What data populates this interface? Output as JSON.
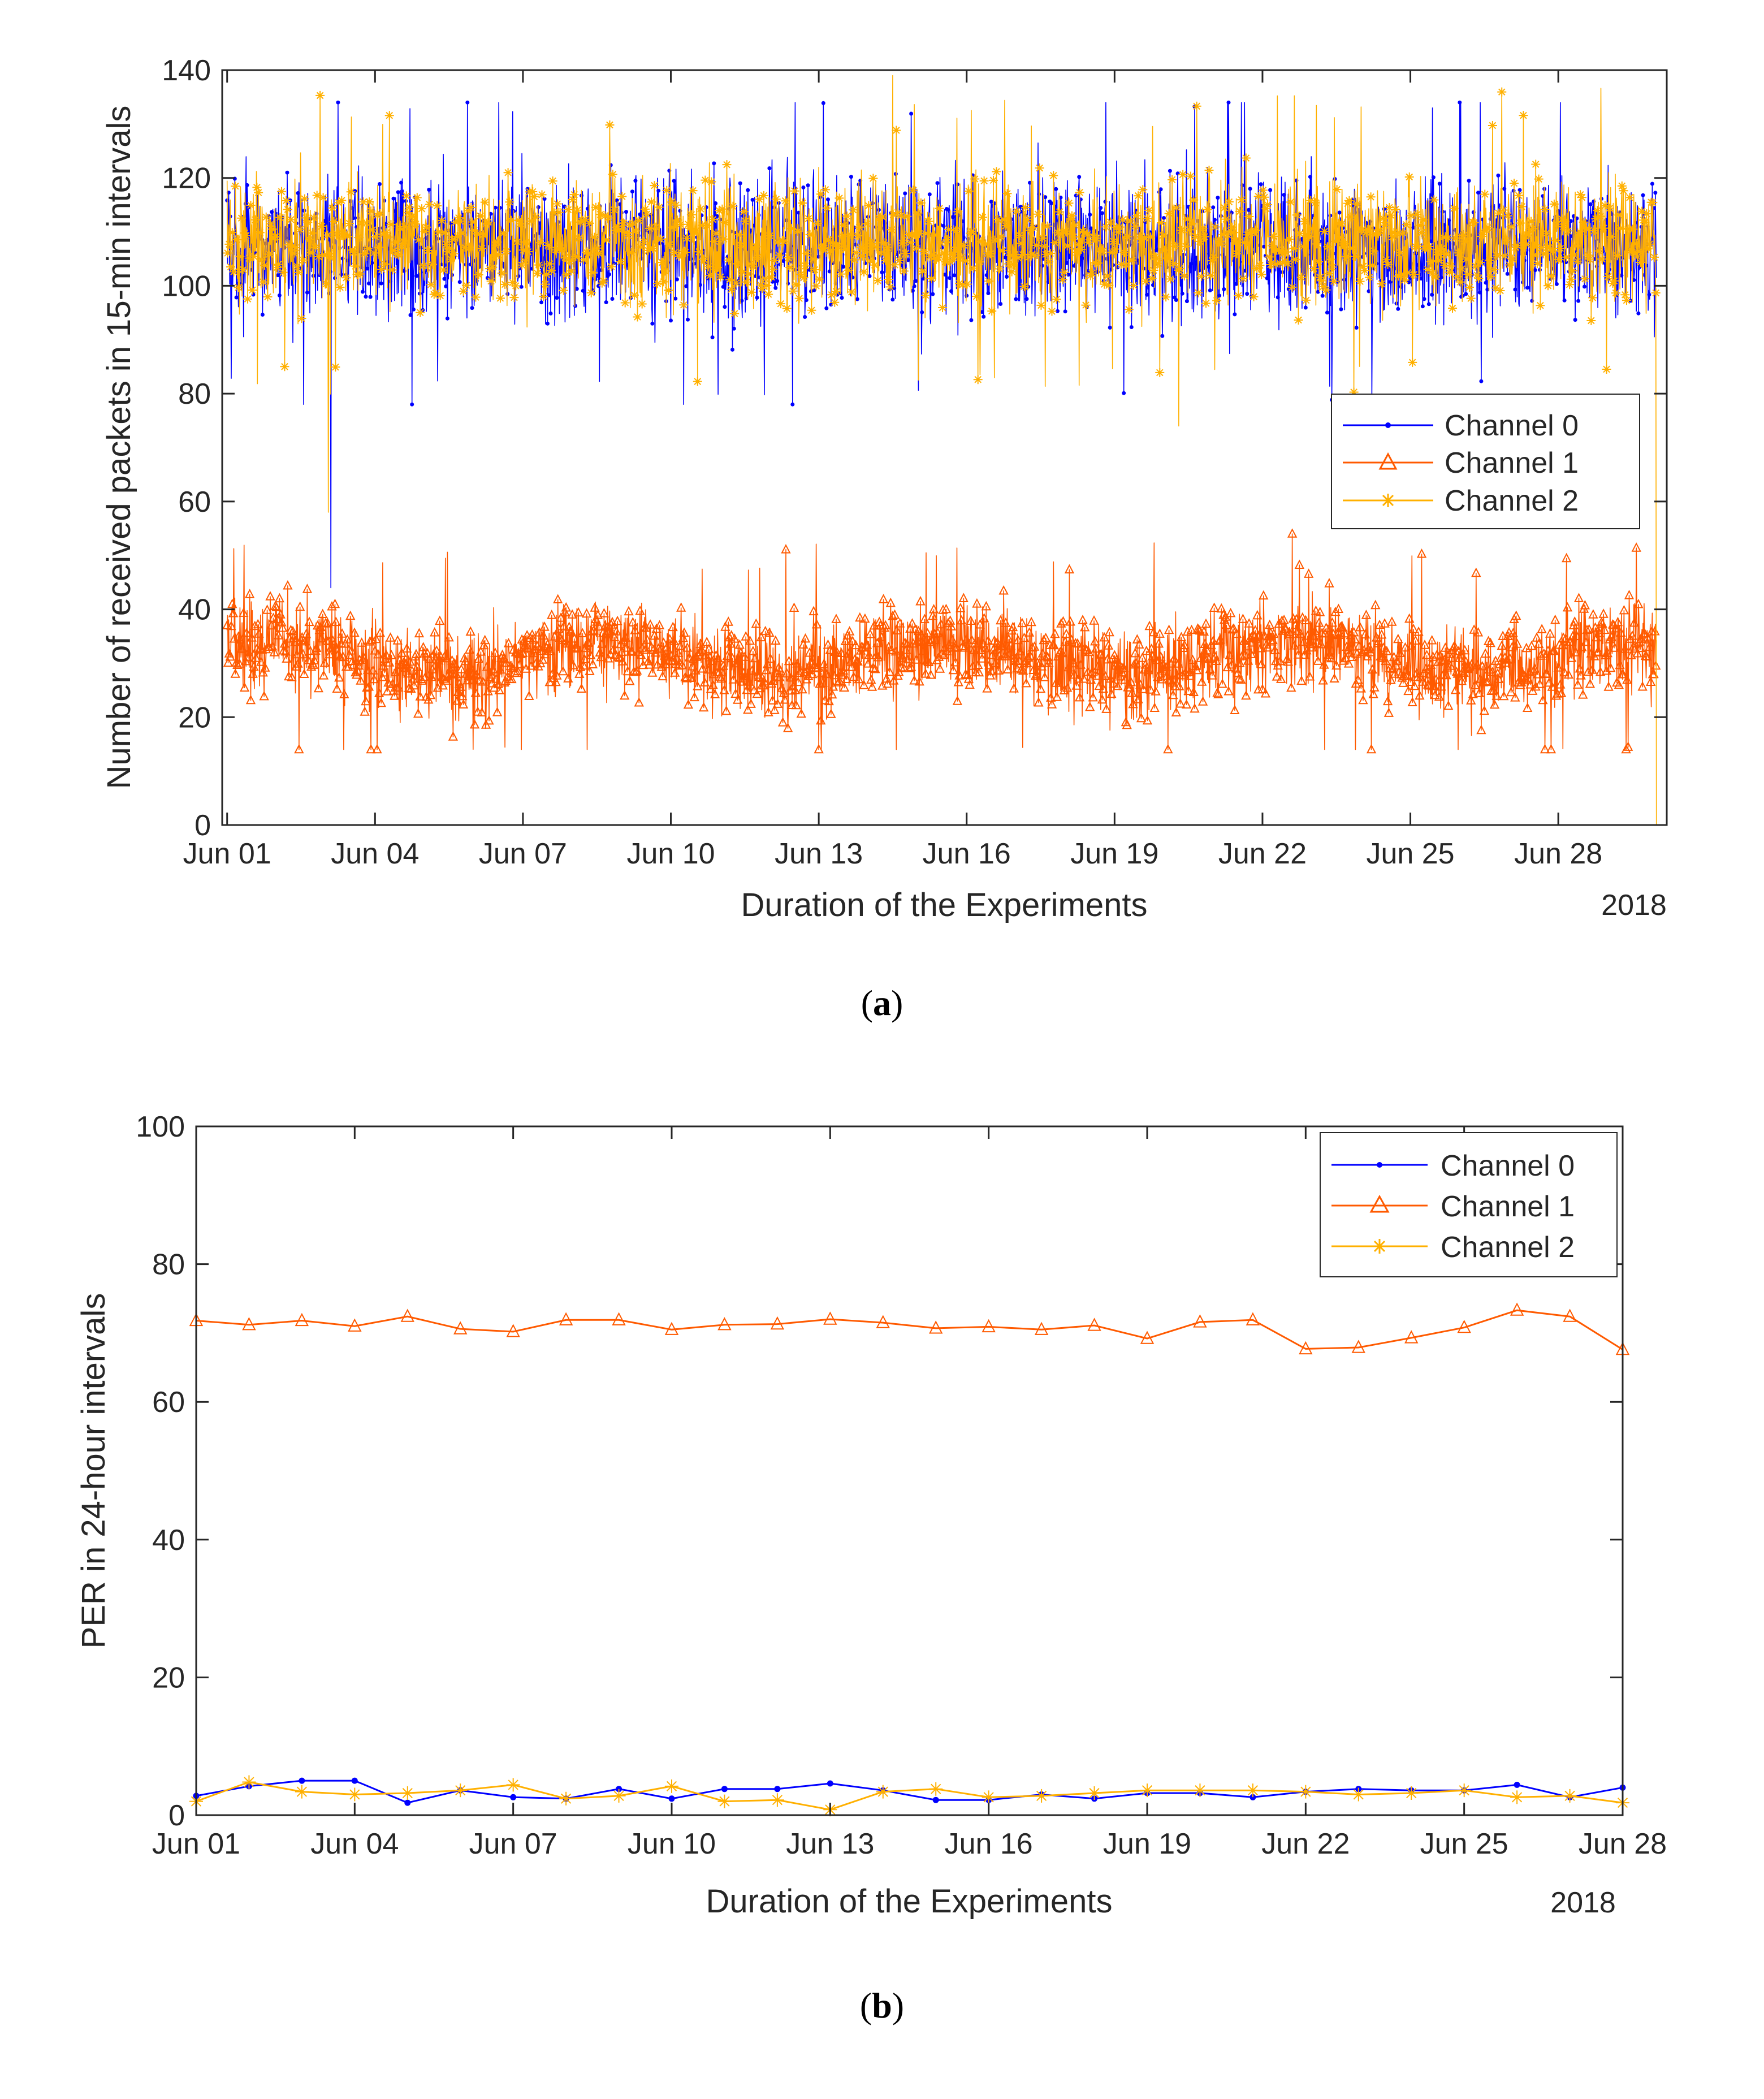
{
  "chart_data": [
    {
      "type": "line",
      "caption_letter": "a",
      "title": "",
      "xlabel": "Duration of the Experiments",
      "ylabel": "Number of received packets in 15-min intervals",
      "year_label": "2018",
      "x_ticks": [
        "Jun 01",
        "Jun 04",
        "Jun 07",
        "Jun 10",
        "Jun 13",
        "Jun 16",
        "Jun 19",
        "Jun 22",
        "Jun 25",
        "Jun 28"
      ],
      "x_tick_days": [
        1,
        4,
        7,
        10,
        13,
        16,
        19,
        22,
        25,
        28
      ],
      "xlim": [
        0.9,
        30.2
      ],
      "ylim": [
        0,
        140
      ],
      "y_ticks": [
        0,
        20,
        40,
        60,
        80,
        100,
        120,
        140
      ],
      "y_tick_labels": [
        "0",
        "20",
        "40",
        "60",
        "80",
        "100",
        "120",
        "140"
      ],
      "legend_position": "right",
      "samples_per_day": 96,
      "days": 29,
      "series": [
        {
          "name": "Channel 0",
          "color": "#0000ff",
          "marker": "dot",
          "mean": 107,
          "spread": 9,
          "min": 78,
          "max": 134,
          "spikes": [
            {
              "day": 3.1,
              "value": 44
            },
            {
              "day": 3.25,
              "value": 134
            },
            {
              "day": 25.45,
              "value": 133
            }
          ]
        },
        {
          "name": "Channel 1",
          "color": "#ff5a00",
          "marker": "triangle",
          "mean": 31,
          "spread": 6,
          "min": 14,
          "max": 54,
          "spikes": [
            {
              "day": 13.05,
              "value": 14
            },
            {
              "day": 22.6,
              "value": 54
            }
          ]
        },
        {
          "name": "Channel 2",
          "color": "#ffb000",
          "marker": "star",
          "mean": 108,
          "spread": 8,
          "min": 0,
          "max": 139,
          "spikes": [
            {
              "day": 3.05,
              "value": 58
            },
            {
              "day": 14.5,
              "value": 139
            },
            {
              "day": 20.3,
              "value": 74
            },
            {
              "day": 30.05,
              "value": 0
            }
          ]
        }
      ]
    },
    {
      "type": "line",
      "caption_letter": "b",
      "title": "",
      "xlabel": "Duration of the Experiments",
      "ylabel": "PER in 24-hour intervals",
      "year_label": "2018",
      "x_ticks": [
        "Jun 01",
        "Jun 04",
        "Jun 07",
        "Jun 10",
        "Jun 13",
        "Jun 16",
        "Jun 19",
        "Jun 22",
        "Jun 25",
        "Jun 28"
      ],
      "x_tick_days": [
        1,
        4,
        7,
        10,
        13,
        16,
        19,
        22,
        25,
        28
      ],
      "x": [
        1,
        2,
        3,
        4,
        5,
        6,
        7,
        8,
        9,
        10,
        11,
        12,
        13,
        14,
        15,
        16,
        17,
        18,
        19,
        20,
        21,
        22,
        23,
        24,
        25,
        26,
        27,
        28
      ],
      "xlim": [
        1,
        28
      ],
      "ylim": [
        0,
        100
      ],
      "y_ticks": [
        0,
        20,
        40,
        60,
        80,
        100
      ],
      "y_tick_labels": [
        "0",
        "20",
        "40",
        "60",
        "80",
        "100"
      ],
      "legend_position": "top-right",
      "series": [
        {
          "name": "Channel 0",
          "color": "#0000ff",
          "marker": "dot",
          "values": [
            2.8,
            4.2,
            5.0,
            5.0,
            1.8,
            3.6,
            2.6,
            2.4,
            3.8,
            2.4,
            3.8,
            3.8,
            4.6,
            3.6,
            2.2,
            2.2,
            3.0,
            2.4,
            3.2,
            3.2,
            2.6,
            3.4,
            3.8,
            3.6,
            3.6,
            4.4,
            2.6,
            4.0
          ]
        },
        {
          "name": "Channel 1",
          "color": "#ff5a00",
          "marker": "triangle",
          "values": [
            71.8,
            71.2,
            71.8,
            71.0,
            72.4,
            70.6,
            70.2,
            71.9,
            71.9,
            70.5,
            71.2,
            71.3,
            72.0,
            71.5,
            70.7,
            70.9,
            70.5,
            71.1,
            69.2,
            71.6,
            71.9,
            67.7,
            67.9,
            69.3,
            70.8,
            73.3,
            72.4,
            67.6
          ]
        },
        {
          "name": "Channel 2",
          "color": "#ffb000",
          "marker": "star",
          "values": [
            2.0,
            4.8,
            3.4,
            3.0,
            3.2,
            3.6,
            4.4,
            2.4,
            2.8,
            4.2,
            2.0,
            2.2,
            0.8,
            3.4,
            3.8,
            2.6,
            2.8,
            3.2,
            3.6,
            3.6,
            3.6,
            3.4,
            3.0,
            3.2,
            3.6,
            2.6,
            2.8,
            1.8
          ]
        }
      ]
    }
  ]
}
